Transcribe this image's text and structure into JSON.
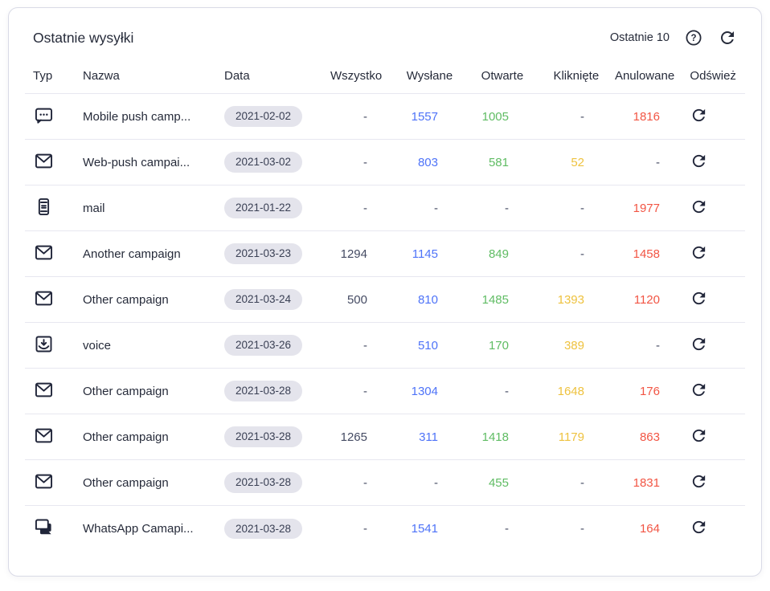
{
  "header": {
    "title": "Ostatnie wysyłki",
    "range_label": "Ostatnie 10",
    "help_icon": "question-circle-icon",
    "refresh_icon": "refresh-icon"
  },
  "table": {
    "columns": [
      "Typ",
      "Nazwa",
      "Data",
      "Wszystko",
      "Wysłane",
      "Otwarte",
      "Kliknięte",
      "Anulowane",
      "Odśwież"
    ],
    "rows": [
      {
        "type_icon": "chat-dots-icon",
        "name": "Mobile push camp...",
        "date": "2021-02-02",
        "all": "-",
        "sent": "1557",
        "opened": "1005",
        "clicked": "-",
        "cancelled": "1816",
        "action_icon": "refresh-icon"
      },
      {
        "type_icon": "envelope-icon",
        "name": "Web-push campai...",
        "date": "2021-03-02",
        "all": "-",
        "sent": "803",
        "opened": "581",
        "clicked": "52",
        "cancelled": "-",
        "action_icon": "refresh-icon"
      },
      {
        "type_icon": "phone-lines-icon",
        "name": "mail",
        "date": "2021-01-22",
        "all": "-",
        "sent": "-",
        "opened": "-",
        "clicked": "-",
        "cancelled": "1977",
        "action_icon": "refresh-icon"
      },
      {
        "type_icon": "envelope-icon",
        "name": "Another campaign",
        "date": "2021-03-23",
        "all": "1294",
        "sent": "1145",
        "opened": "849",
        "clicked": "-",
        "cancelled": "1458",
        "action_icon": "refresh-icon"
      },
      {
        "type_icon": "envelope-icon",
        "name": "Other campaign",
        "date": "2021-03-24",
        "all": "500",
        "sent": "810",
        "opened": "1485",
        "clicked": "1393",
        "cancelled": "1120",
        "action_icon": "refresh-icon"
      },
      {
        "type_icon": "inbox-arrow-icon",
        "name": "voice",
        "date": "2021-03-26",
        "all": "-",
        "sent": "510",
        "opened": "170",
        "clicked": "389",
        "cancelled": "-",
        "action_icon": "refresh-icon"
      },
      {
        "type_icon": "envelope-icon",
        "name": "Other campaign",
        "date": "2021-03-28",
        "all": "-",
        "sent": "1304",
        "opened": "-",
        "clicked": "1648",
        "cancelled": "176",
        "action_icon": "refresh-icon"
      },
      {
        "type_icon": "envelope-icon",
        "name": "Other campaign",
        "date": "2021-03-28",
        "all": "1265",
        "sent": "311",
        "opened": "1418",
        "clicked": "1179",
        "cancelled": "863",
        "action_icon": "refresh-icon"
      },
      {
        "type_icon": "envelope-icon",
        "name": "Other campaign",
        "date": "2021-03-28",
        "all": "-",
        "sent": "-",
        "opened": "455",
        "clicked": "-",
        "cancelled": "1831",
        "action_icon": "refresh-icon"
      },
      {
        "type_icon": "chat-bubbles-icon",
        "name": "WhatsApp Camapi...",
        "date": "2021-03-28",
        "all": "-",
        "sent": "1541",
        "opened": "-",
        "clicked": "-",
        "cancelled": "164",
        "action_icon": "refresh-icon"
      }
    ]
  },
  "colors": {
    "text": "#262b3a",
    "neutral": "#454b63",
    "sent": "#4e73f8",
    "opened": "#5fbc63",
    "clicked": "#eec23f",
    "cancelled": "#f25544",
    "icon": "#21263a",
    "badge_bg": "#e4e4ec",
    "badge_text": "#3a4054",
    "row_border": "#e7e7f0",
    "card_border": "#d9dae6"
  }
}
